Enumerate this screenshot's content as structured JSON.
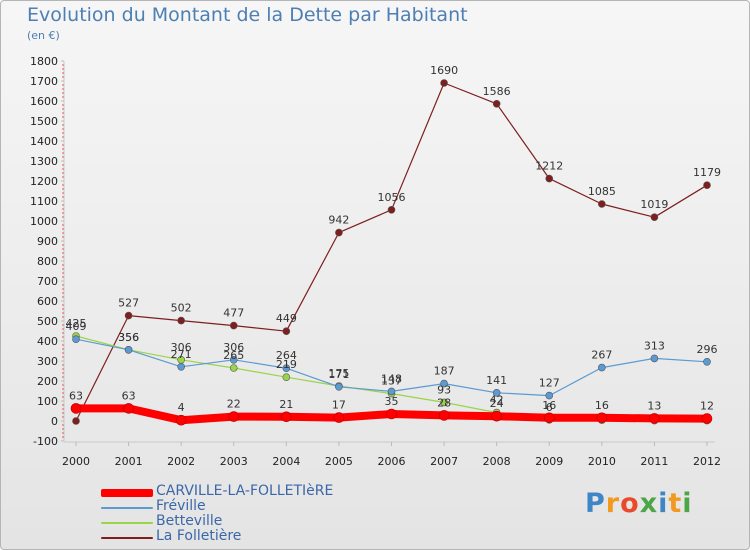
{
  "title": "Evolution du Montant de la Dette par Habitant",
  "subtitle": "(en €)",
  "logo": {
    "text": "Proxiti",
    "letter_colors": [
      "#3f86c6",
      "#f29a20",
      "#e94a2a",
      "#4da645",
      "#3f86c6",
      "#f29a20",
      "#4da645"
    ]
  },
  "chart_data": {
    "type": "line",
    "title": "Evolution du Montant de la Dette par Habitant",
    "subtitle": "(en €)",
    "x": [
      "2000",
      "2001",
      "2002",
      "2003",
      "2004",
      "2005",
      "2006",
      "2007",
      "2008",
      "2009",
      "2010",
      "2011",
      "2012"
    ],
    "ylim": [
      -100,
      1800
    ],
    "yticks": [
      -100,
      0,
      100,
      200,
      300,
      400,
      500,
      600,
      700,
      800,
      900,
      1000,
      1100,
      1200,
      1300,
      1400,
      1500,
      1600,
      1700,
      1800
    ],
    "grid": false,
    "legend_position": "bottom-left",
    "series": [
      {
        "name": "CARVILLE-LA-FOLLETIèRE",
        "color": "#ff0000",
        "values": [
          63,
          63,
          4,
          22,
          21,
          17,
          35,
          28,
          24,
          16,
          16,
          13,
          12
        ],
        "labels": [
          "63",
          "63",
          "4",
          "22",
          "21",
          "17",
          "35",
          "28",
          "24",
          "16",
          "16",
          "13",
          "12"
        ]
      },
      {
        "name": "Fréville",
        "color": "#5b9ad3",
        "values": [
          409,
          356,
          271,
          306,
          264,
          171,
          148,
          187,
          141,
          127,
          267,
          313,
          296
        ],
        "labels": [
          "409",
          "356",
          "271",
          "306",
          "264",
          "171",
          "148",
          "187",
          "141",
          "127",
          "267",
          "313",
          "296"
        ]
      },
      {
        "name": "Betteville",
        "color": "#9ad448",
        "values": [
          425,
          356,
          306,
          265,
          219,
          175,
          137,
          93,
          42,
          6,
          4,
          2,
          2
        ],
        "labels": [
          "425",
          "356",
          "306",
          "265",
          "219",
          "175",
          "137",
          "93",
          "42",
          "6",
          "",
          "",
          ""
        ]
      },
      {
        "name": "La Folletière",
        "color": "#7f1e1e",
        "values": [
          0,
          527,
          502,
          477,
          449,
          942,
          1056,
          1690,
          1586,
          1212,
          1085,
          1019,
          1179
        ],
        "labels": [
          "",
          "527",
          "502",
          "477",
          "449",
          "942",
          "1056",
          "1690",
          "1586",
          "1212",
          "1085",
          "1019",
          "1179"
        ]
      }
    ]
  }
}
